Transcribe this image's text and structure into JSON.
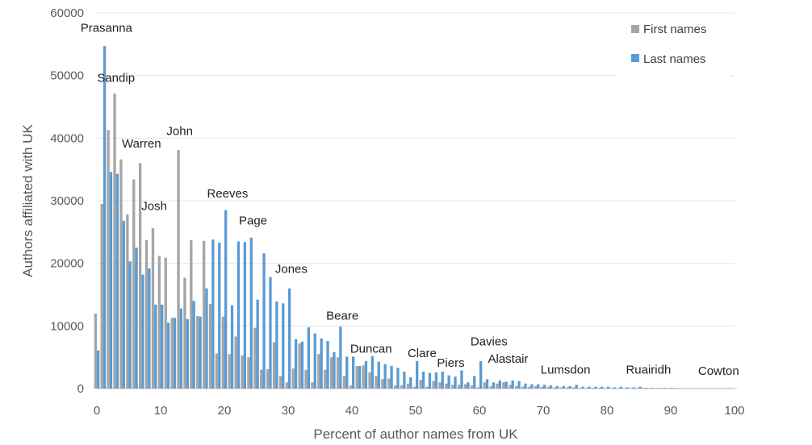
{
  "chart_data": {
    "type": "bar",
    "xlabel": "Percent of author names from UK",
    "ylabel": "Authors affiliated with UK",
    "xlim": [
      0,
      100
    ],
    "ylim": [
      0,
      60000
    ],
    "x_ticks": [
      "0",
      "10",
      "20",
      "30",
      "40",
      "50",
      "60",
      "70",
      "80",
      "90",
      "100"
    ],
    "y_ticks": [
      "0",
      "10000",
      "20000",
      "30000",
      "40000",
      "50000",
      "60000"
    ],
    "grid": "horizontal",
    "legend_position": "top-right",
    "colors": {
      "first": "#a5a5a5",
      "last": "#5b9bd5"
    },
    "x": [
      0,
      1,
      2,
      3,
      4,
      5,
      6,
      7,
      8,
      9,
      10,
      11,
      12,
      13,
      14,
      15,
      16,
      17,
      18,
      19,
      20,
      21,
      22,
      23,
      24,
      25,
      26,
      27,
      28,
      29,
      30,
      31,
      32,
      33,
      34,
      35,
      36,
      37,
      38,
      39,
      40,
      41,
      42,
      43,
      44,
      45,
      46,
      47,
      48,
      49,
      50,
      51,
      52,
      53,
      54,
      55,
      56,
      57,
      58,
      59,
      60,
      61,
      62,
      63,
      64,
      65,
      66,
      67,
      68,
      69,
      70,
      71,
      72,
      73,
      74,
      75,
      76,
      77,
      78,
      79,
      80,
      81,
      82,
      83,
      84,
      85,
      86,
      87,
      88,
      89,
      90,
      91,
      92,
      93,
      94,
      95,
      96,
      97,
      98,
      99,
      100
    ],
    "series": [
      {
        "name": "First names",
        "key": "first",
        "values": [
          12000,
          29500,
          41300,
          47100,
          36600,
          27800,
          33400,
          36000,
          23700,
          25600,
          21200,
          20900,
          11300,
          38100,
          17700,
          23700,
          11600,
          23600,
          13500,
          5600,
          11500,
          5500,
          8300,
          5300,
          5000,
          9700,
          3000,
          3100,
          7400,
          2000,
          1000,
          3200,
          7200,
          3000,
          1000,
          5500,
          3000,
          5000,
          5000,
          2000,
          500,
          3600,
          3700,
          2600,
          2000,
          1500,
          1600,
          500,
          500,
          800,
          300,
          1400,
          300,
          1200,
          1000,
          800,
          600,
          600,
          700,
          500,
          200,
          1000,
          400,
          800,
          1000,
          600,
          400,
          300,
          300,
          400,
          300,
          300,
          200,
          200,
          200,
          200,
          100,
          100,
          100,
          100,
          100,
          100,
          100,
          100,
          100,
          100,
          100,
          100,
          100,
          100,
          100,
          100,
          50,
          50,
          50,
          50,
          50,
          50,
          50,
          50,
          50
        ]
      },
      {
        "name": "Last names",
        "key": "last",
        "values": [
          6100,
          54700,
          34600,
          34300,
          26800,
          20300,
          22500,
          18200,
          19200,
          13400,
          13400,
          10500,
          11300,
          12800,
          11100,
          14000,
          11500,
          16000,
          23800,
          23300,
          28500,
          13300,
          23500,
          23400,
          24100,
          14200,
          21600,
          17800,
          13900,
          13600,
          16000,
          7900,
          7500,
          9800,
          8800,
          8000,
          7600,
          5800,
          9900,
          5100,
          5100,
          3600,
          4400,
          5200,
          4300,
          3900,
          3600,
          3300,
          2700,
          1800,
          4400,
          2700,
          2500,
          2600,
          2700,
          2100,
          1900,
          2900,
          1000,
          2000,
          4400,
          1500,
          1000,
          1300,
          1100,
          1300,
          1200,
          800,
          700,
          700,
          600,
          500,
          400,
          400,
          400,
          600,
          300,
          300,
          300,
          300,
          300,
          200,
          300,
          200,
          200,
          300,
          100,
          100,
          100,
          100,
          100,
          50,
          50,
          50,
          50,
          50,
          50,
          50,
          50,
          50,
          50
        ]
      }
    ],
    "annotations": [
      {
        "text": "Prasanna",
        "x": 1.5,
        "y": 57000
      },
      {
        "text": "Sandip",
        "x": 3.0,
        "y": 49000
      },
      {
        "text": "Warren",
        "x": 7.0,
        "y": 38500
      },
      {
        "text": "John",
        "x": 13.0,
        "y": 40500
      },
      {
        "text": "Josh",
        "x": 9.0,
        "y": 28500
      },
      {
        "text": "Reeves",
        "x": 20.5,
        "y": 30500
      },
      {
        "text": "Page",
        "x": 24.5,
        "y": 26200
      },
      {
        "text": "Jones",
        "x": 30.5,
        "y": 18500
      },
      {
        "text": "Beare",
        "x": 38.5,
        "y": 11000
      },
      {
        "text": "Duncan",
        "x": 43.0,
        "y": 5700
      },
      {
        "text": "Clare",
        "x": 51.0,
        "y": 5000
      },
      {
        "text": "Piers",
        "x": 55.5,
        "y": 3500
      },
      {
        "text": "Davies",
        "x": 61.5,
        "y": 6900
      },
      {
        "text": "Alastair",
        "x": 64.5,
        "y": 4100
      },
      {
        "text": "Lumsdon",
        "x": 73.5,
        "y": 2400
      },
      {
        "text": "Ruairidh",
        "x": 86.5,
        "y": 2400
      },
      {
        "text": "Cowton",
        "x": 97.5,
        "y": 2200
      }
    ]
  }
}
